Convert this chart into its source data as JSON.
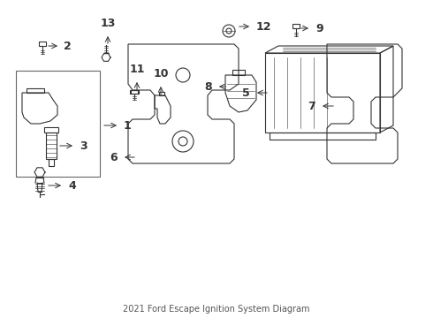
{
  "title": "2021 Ford Escape Ignition System Diagram",
  "bg_color": "#ffffff",
  "line_color": "#333333",
  "label_color": "#000000",
  "fig_width": 4.9,
  "fig_height": 3.6,
  "dpi": 100
}
